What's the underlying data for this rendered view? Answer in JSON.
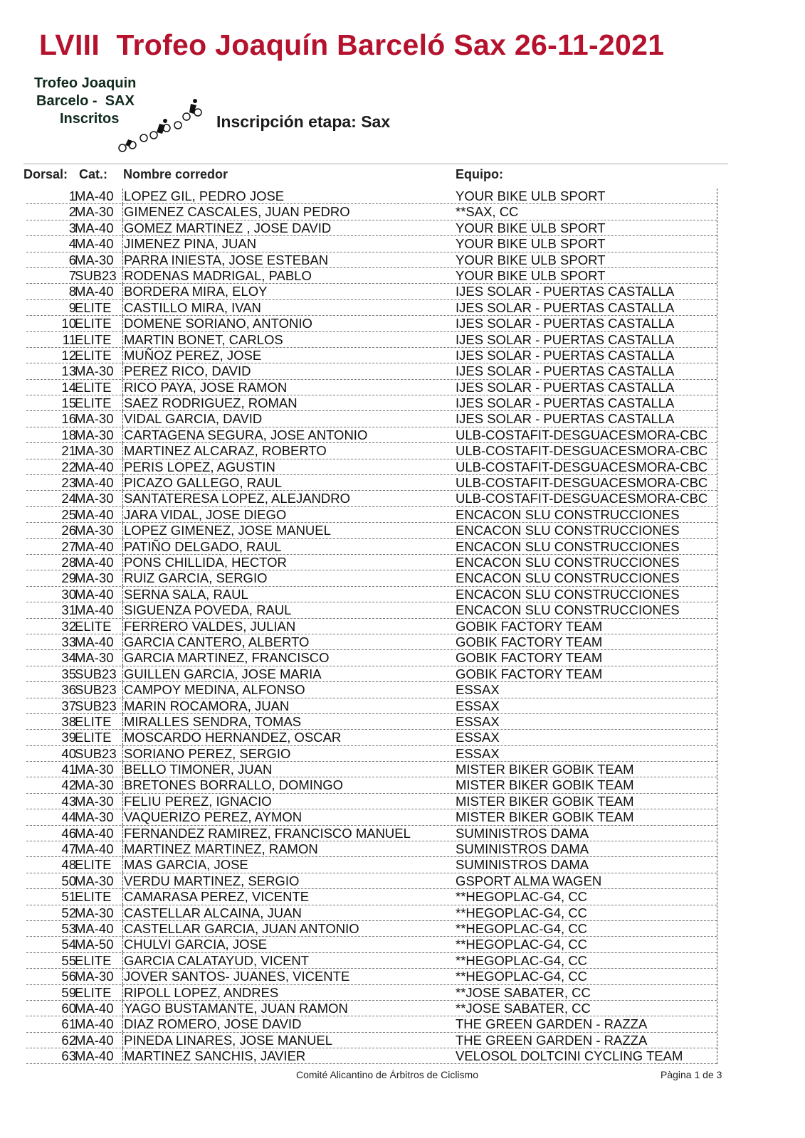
{
  "title": "LVIII  Trofeo Joaquín Barceló Sax 26-11-2021",
  "logo": {
    "line1": "Trofeo Joaquin",
    "line2": "Barcelo -  SAX",
    "line3": "Inscritos"
  },
  "subtitle": "Inscripción etapa: Sax",
  "headers": {
    "dorsal": "Dorsal:",
    "cat": "Cat.:",
    "name": "Nombre corredor",
    "team": "Equipo:"
  },
  "rows": [
    [
      "1",
      "MA-40",
      "LOPEZ GIL, PEDRO JOSE",
      "YOUR BIKE ULB SPORT"
    ],
    [
      "2",
      "MA-30",
      "GIMENEZ CASCALES, JUAN PEDRO",
      "**SAX, CC"
    ],
    [
      "3",
      "MA-40",
      "GOMEZ MARTINEZ , JOSE DAVID",
      "YOUR BIKE ULB SPORT"
    ],
    [
      "4",
      "MA-40",
      "JIMENEZ PINA, JUAN",
      "YOUR BIKE ULB SPORT"
    ],
    [
      "6",
      "MA-30",
      "PARRA INIESTA, JOSE ESTEBAN",
      "YOUR BIKE ULB SPORT"
    ],
    [
      "7",
      "SUB23",
      "RODENAS MADRIGAL, PABLO",
      "YOUR BIKE ULB SPORT"
    ],
    [
      "8",
      "MA-40",
      "BORDERA MIRA, ELOY",
      "IJES SOLAR - PUERTAS CASTALLA"
    ],
    [
      "9",
      "ELITE",
      "CASTILLO MIRA, IVAN",
      "IJES SOLAR - PUERTAS CASTALLA"
    ],
    [
      "10",
      "ELITE",
      "DOMENE SORIANO, ANTONIO",
      "IJES SOLAR - PUERTAS CASTALLA"
    ],
    [
      "11",
      "ELITE",
      "MARTIN BONET, CARLOS",
      "IJES SOLAR - PUERTAS CASTALLA"
    ],
    [
      "12",
      "ELITE",
      "MUÑOZ PEREZ, JOSE",
      "IJES SOLAR - PUERTAS CASTALLA"
    ],
    [
      "13",
      "MA-30",
      "PEREZ RICO, DAVID",
      "IJES SOLAR - PUERTAS CASTALLA"
    ],
    [
      "14",
      "ELITE",
      "RICO PAYA, JOSE RAMON",
      "IJES SOLAR - PUERTAS CASTALLA"
    ],
    [
      "15",
      "ELITE",
      "SAEZ RODRIGUEZ, ROMAN",
      "IJES SOLAR - PUERTAS CASTALLA"
    ],
    [
      "16",
      "MA-30",
      "VIDAL GARCIA, DAVID",
      "IJES SOLAR - PUERTAS CASTALLA"
    ],
    [
      "18",
      "MA-30",
      "CARTAGENA SEGURA, JOSE ANTONIO",
      "ULB-COSTAFIT-DESGUACESMORA-CBC"
    ],
    [
      "21",
      "MA-30",
      "MARTINEZ ALCARAZ, ROBERTO",
      "ULB-COSTAFIT-DESGUACESMORA-CBC"
    ],
    [
      "22",
      "MA-40",
      "PERIS LOPEZ, AGUSTIN",
      "ULB-COSTAFIT-DESGUACESMORA-CBC"
    ],
    [
      "23",
      "MA-40",
      "PICAZO GALLEGO, RAUL",
      "ULB-COSTAFIT-DESGUACESMORA-CBC"
    ],
    [
      "24",
      "MA-30",
      "SANTATERESA LOPEZ, ALEJANDRO",
      "ULB-COSTAFIT-DESGUACESMORA-CBC"
    ],
    [
      "25",
      "MA-40",
      "JARA VIDAL, JOSE DIEGO",
      "ENCACON SLU CONSTRUCCIONES"
    ],
    [
      "26",
      "MA-30",
      "LOPEZ GIMENEZ, JOSE MANUEL",
      "ENCACON SLU CONSTRUCCIONES"
    ],
    [
      "27",
      "MA-40",
      "PATIÑO DELGADO, RAUL",
      "ENCACON SLU CONSTRUCCIONES"
    ],
    [
      "28",
      "MA-40",
      "PONS CHILLIDA, HECTOR",
      "ENCACON SLU CONSTRUCCIONES"
    ],
    [
      "29",
      "MA-30",
      "RUIZ GARCIA, SERGIO",
      "ENCACON SLU CONSTRUCCIONES"
    ],
    [
      "30",
      "MA-40",
      "SERNA SALA, RAUL",
      "ENCACON SLU CONSTRUCCIONES"
    ],
    [
      "31",
      "MA-40",
      "SIGUENZA POVEDA, RAUL",
      "ENCACON SLU CONSTRUCCIONES"
    ],
    [
      "32",
      "ELITE",
      "FERRERO VALDES, JULIAN",
      "GOBIK FACTORY TEAM"
    ],
    [
      "33",
      "MA-40",
      "GARCIA CANTERO, ALBERTO",
      "GOBIK FACTORY TEAM"
    ],
    [
      "34",
      "MA-30",
      "GARCIA MARTINEZ, FRANCISCO",
      "GOBIK FACTORY TEAM"
    ],
    [
      "35",
      "SUB23",
      "GUILLEN GARCIA, JOSE MARIA",
      "GOBIK FACTORY TEAM"
    ],
    [
      "36",
      "SUB23",
      "CAMPOY MEDINA, ALFONSO",
      "ESSAX"
    ],
    [
      "37",
      "SUB23",
      "MARIN ROCAMORA, JUAN",
      "ESSAX"
    ],
    [
      "38",
      "ELITE",
      "MIRALLES SENDRA, TOMAS",
      "ESSAX"
    ],
    [
      "39",
      "ELITE",
      "MOSCARDO HERNANDEZ, OSCAR",
      "ESSAX"
    ],
    [
      "40",
      "SUB23",
      "SORIANO PEREZ, SERGIO",
      "ESSAX"
    ],
    [
      "41",
      "MA-30",
      "BELLO TIMONER, JUAN",
      "MISTER BIKER GOBIK TEAM"
    ],
    [
      "42",
      "MA-30",
      "BRETONES BORRALLO, DOMINGO",
      "MISTER BIKER GOBIK TEAM"
    ],
    [
      "43",
      "MA-30",
      "FELIU PEREZ, IGNACIO",
      "MISTER BIKER GOBIK TEAM"
    ],
    [
      "44",
      "MA-30",
      "VAQUERIZO PEREZ, AYMON",
      "MISTER BIKER GOBIK TEAM"
    ],
    [
      "46",
      "MA-40",
      "FERNANDEZ RAMIREZ, FRANCISCO MANUEL",
      "SUMINISTROS DAMA"
    ],
    [
      "47",
      "MA-40",
      "MARTINEZ MARTINEZ, RAMON",
      "SUMINISTROS DAMA"
    ],
    [
      "48",
      "ELITE",
      "MAS GARCIA, JOSE",
      "SUMINISTROS DAMA"
    ],
    [
      "50",
      "MA-30",
      "VERDU MARTINEZ, SERGIO",
      "GSPORT ALMA WAGEN"
    ],
    [
      "51",
      "ELITE",
      "CAMARASA PEREZ, VICENTE",
      "**HEGOPLAC-G4, CC"
    ],
    [
      "52",
      "MA-30",
      "CASTELLAR ALCAINA, JUAN",
      "**HEGOPLAC-G4, CC"
    ],
    [
      "53",
      "MA-40",
      "CASTELLAR GARCIA, JUAN ANTONIO",
      "**HEGOPLAC-G4, CC"
    ],
    [
      "54",
      "MA-50",
      "CHULVI GARCIA, JOSE",
      "**HEGOPLAC-G4, CC"
    ],
    [
      "55",
      "ELITE",
      "GARCIA CALATAYUD, VICENT",
      "**HEGOPLAC-G4, CC"
    ],
    [
      "56",
      "MA-30",
      "JOVER SANTOS- JUANES, VICENTE",
      "**HEGOPLAC-G4, CC"
    ],
    [
      "59",
      "ELITE",
      "RIPOLL LOPEZ, ANDRES",
      "**JOSE SABATER, CC"
    ],
    [
      "60",
      "MA-40",
      "YAGO BUSTAMANTE, JUAN RAMON",
      "**JOSE SABATER, CC"
    ],
    [
      "61",
      "MA-40",
      "DIAZ ROMERO, JOSE DAVID",
      "THE GREEN GARDEN - RAZZA"
    ],
    [
      "62",
      "MA-40",
      "PINEDA LINARES, JOSE MANUEL",
      "THE GREEN GARDEN - RAZZA"
    ],
    [
      "63",
      "MA-40",
      "MARTINEZ SANCHIS, JAVIER",
      "VELOSOL DOLTCINI CYCLING TEAM"
    ]
  ],
  "footer": {
    "center": "Comité Alicantino de Árbitros de Ciclismo",
    "page": "Pàgina 1 de 3"
  },
  "colors": {
    "title": "#b5122e"
  }
}
